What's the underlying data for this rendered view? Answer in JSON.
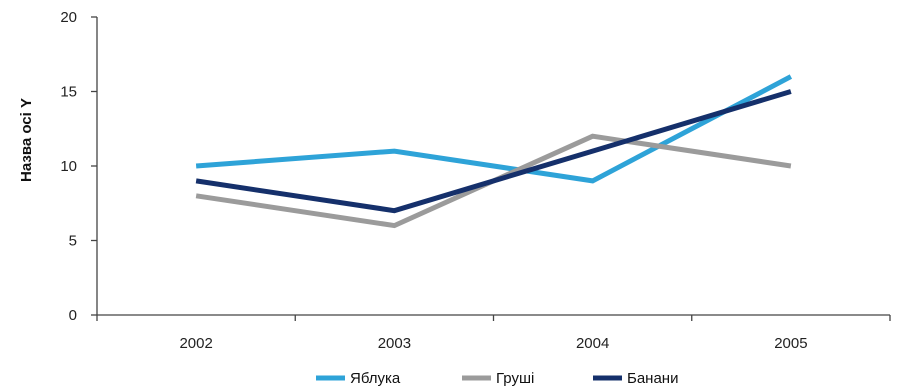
{
  "chart_data": {
    "type": "line",
    "title": "",
    "xlabel": "",
    "ylabel": "Назва осі Y",
    "categories": [
      "2002",
      "2003",
      "2004",
      "2005"
    ],
    "ylim": [
      0,
      20
    ],
    "yticks": [
      0,
      5,
      10,
      15,
      20
    ],
    "grid": false,
    "legend_position": "bottom",
    "series": [
      {
        "name": "Яблука",
        "values": [
          10,
          11,
          9,
          16
        ],
        "color": "#2ea3d8"
      },
      {
        "name": "Груші",
        "values": [
          8,
          6,
          12,
          10
        ],
        "color": "#9b9b9b"
      },
      {
        "name": "Банани",
        "values": [
          9,
          7,
          11,
          15
        ],
        "color": "#15306b"
      }
    ]
  }
}
